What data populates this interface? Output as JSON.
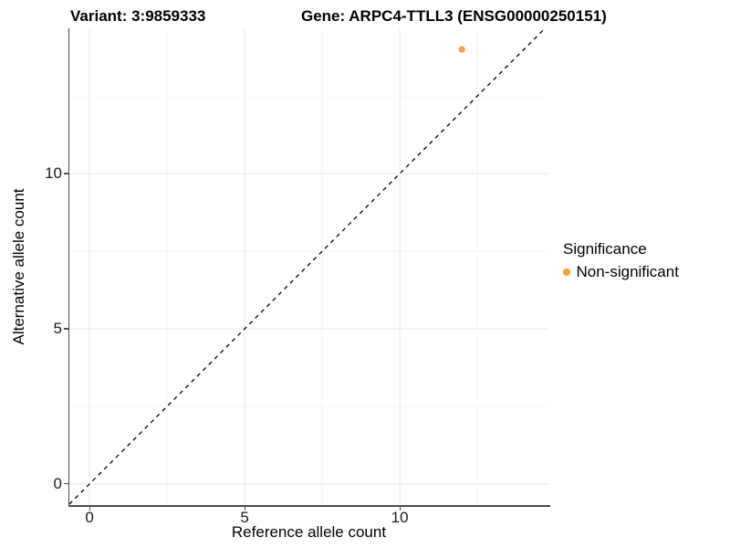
{
  "figure": {
    "title_left": "Variant: 3:9859333",
    "title_right": "Gene: ARPC4-TTLL3 (ENSG00000250151)"
  },
  "chart_data": {
    "type": "scatter",
    "title": "Variant: 3:9859333        Gene: ARPC4-TTLL3 (ENSG00000250151)",
    "xlabel": "Reference allele count",
    "ylabel": "Alternative allele count",
    "xlim": [
      -0.65,
      14.79
    ],
    "ylim": [
      -0.68,
      14.68
    ],
    "x_ticks": [
      0,
      5,
      10
    ],
    "y_ticks": [
      0,
      5,
      10
    ],
    "minor_gridlines": [
      2.5,
      7.5,
      12.5
    ],
    "grid": true,
    "background": "#ffffff",
    "grid_major_color": "#ececec",
    "grid_minor_color": "#f5f5f5",
    "axis_line_color": "#4d4d4d",
    "reference_line": {
      "type": "identity",
      "style": "dashed",
      "color": "#000000"
    },
    "series": [
      {
        "name": "Non-significant",
        "color": "#F7A13C",
        "points": [
          {
            "x": 12,
            "y": 14
          }
        ]
      }
    ],
    "legend": {
      "title": "Significance",
      "position": "right",
      "entries": [
        {
          "label": "Non-significant",
          "color": "#F7A13C"
        }
      ]
    }
  }
}
